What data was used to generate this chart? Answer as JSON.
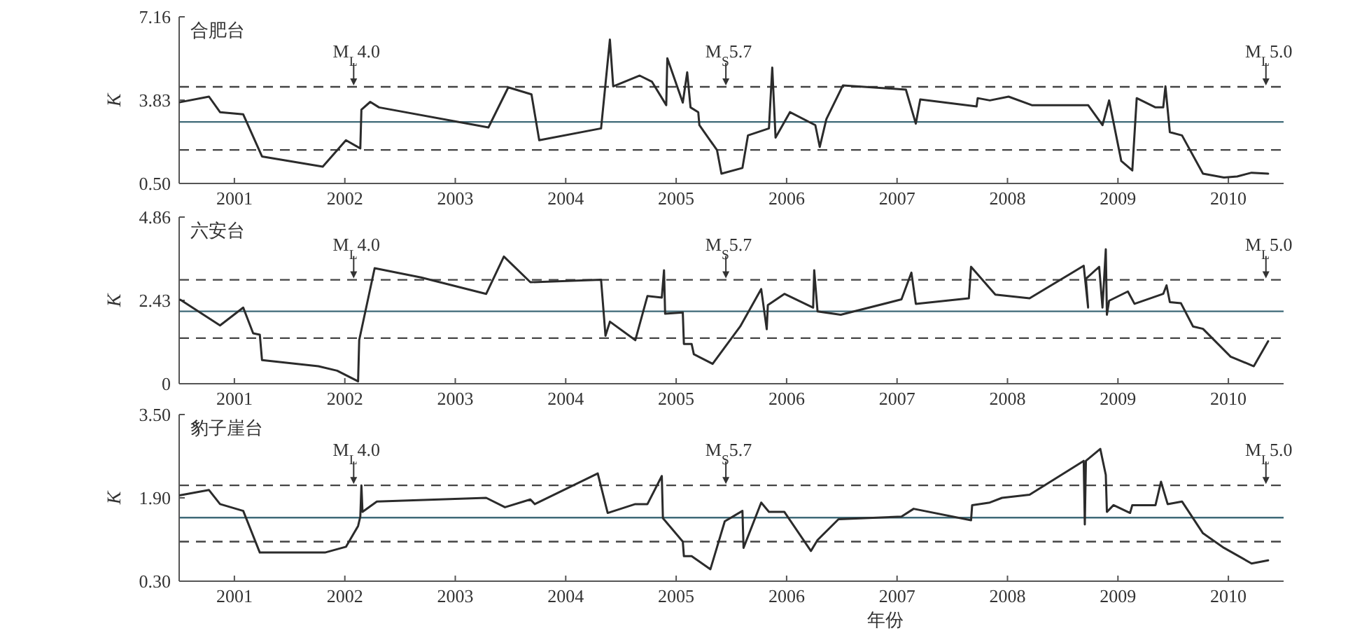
{
  "chart_data": [
    {
      "type": "line",
      "title": "合肥台",
      "ylabel": "K",
      "xlim": [
        2001,
        2011
      ],
      "ylim": [
        0.5,
        7.16
      ],
      "xticks": [
        {
          "value": 2001.5,
          "label": "2001"
        },
        {
          "value": 2002.5,
          "label": "2002"
        },
        {
          "value": 2003.5,
          "label": "2003"
        },
        {
          "value": 2004.5,
          "label": "2004"
        },
        {
          "value": 2005.5,
          "label": "2005"
        },
        {
          "value": 2006.5,
          "label": "2006"
        },
        {
          "value": 2007.5,
          "label": "2007"
        },
        {
          "value": 2008.5,
          "label": "2008"
        },
        {
          "value": 2009.5,
          "label": "2009"
        },
        {
          "value": 2010.5,
          "label": "2010"
        }
      ],
      "yticks": [
        {
          "value": 0.5,
          "label": "0.50"
        },
        3.83,
        7.16
      ],
      "x": [
        2001.01,
        2001.27,
        2001.37,
        2001.58,
        2001.75,
        2002.3,
        2002.51,
        2002.64,
        2002.65,
        2002.73,
        2002.81,
        2003.8,
        2003.98,
        2004.19,
        2004.26,
        2004.82,
        2004.9,
        2004.93,
        2005.17,
        2005.28,
        2005.41,
        2005.42,
        2005.56,
        2005.6,
        2005.63,
        2005.7,
        2005.71,
        2005.87,
        2005.91,
        2006.1,
        2006.15,
        2006.34,
        2006.37,
        2006.4,
        2006.53,
        2006.76,
        2006.8,
        2006.86,
        2007.01,
        2007.58,
        2007.67,
        2007.71,
        2008.22,
        2008.23,
        2008.34,
        2008.51,
        2008.72,
        2009.23,
        2009.36,
        2009.42,
        2009.53,
        2009.63,
        2009.67,
        2009.84,
        2009.91,
        2009.93,
        2009.97,
        2010.08,
        2010.27,
        2010.46,
        2010.58,
        2010.71,
        2010.86
      ],
      "series": [
        {
          "color": "#2b2b2b",
          "values": [
            3.75,
            3.97,
            3.35,
            3.26,
            1.58,
            1.17,
            2.23,
            1.9,
            3.45,
            3.76,
            3.54,
            2.74,
            4.34,
            4.06,
            2.23,
            2.7,
            6.25,
            4.38,
            4.81,
            4.57,
            3.63,
            5.5,
            3.73,
            4.94,
            3.54,
            3.35,
            2.83,
            1.83,
            0.89,
            1.12,
            2.42,
            2.7,
            5.13,
            2.33,
            3.35,
            2.83,
            1.96,
            3.07,
            4.42,
            4.25,
            2.89,
            3.86,
            3.58,
            3.91,
            3.82,
            3.97,
            3.63,
            3.63,
            2.83,
            3.82,
            1.4,
            1.02,
            3.91,
            3.54,
            3.54,
            4.38,
            2.55,
            2.42,
            0.89,
            0.74,
            0.78,
            0.93,
            0.89
          ]
        }
      ],
      "ref_lines": [
        {
          "axis": "y",
          "value": 4.36,
          "color": "#444444",
          "line_style": "dashed"
        },
        {
          "axis": "y",
          "value": 2.96,
          "color": "#3f6a78",
          "line_style": "solid"
        },
        {
          "axis": "y",
          "value": 1.84,
          "color": "#444444",
          "line_style": "dashed"
        }
      ],
      "annotations": [
        {
          "text": "M$_{L}$4.0",
          "x": 2002.58,
          "y": 4.36
        },
        {
          "text": "M$_{S}$5.7",
          "x": 2005.95,
          "y": 4.36
        },
        {
          "text": "M$_{L}$5.0",
          "x": 2010.84,
          "y": 4.36
        }
      ]
    },
    {
      "type": "line",
      "title": "六安台",
      "ylabel": "K",
      "xlim": [
        2001,
        2011
      ],
      "ylim": [
        0,
        4.86
      ],
      "xticks": [
        {
          "value": 2001.5,
          "label": "2001"
        },
        {
          "value": 2002.5,
          "label": "2002"
        },
        {
          "value": 2003.5,
          "label": "2003"
        },
        {
          "value": 2004.5,
          "label": "2004"
        },
        {
          "value": 2005.5,
          "label": "2005"
        },
        {
          "value": 2006.5,
          "label": "2006"
        },
        {
          "value": 2007.5,
          "label": "2007"
        },
        {
          "value": 2008.5,
          "label": "2008"
        },
        {
          "value": 2009.5,
          "label": "2009"
        },
        {
          "value": 2010.5,
          "label": "2010"
        }
      ],
      "yticks": [
        0,
        2.43,
        4.86
      ],
      "x": [
        2001.01,
        2001.37,
        2001.58,
        2001.67,
        2001.73,
        2001.75,
        2002.26,
        2002.43,
        2002.62,
        2002.63,
        2002.77,
        2003.19,
        2003.78,
        2003.94,
        2004.18,
        2004.82,
        2004.86,
        2004.9,
        2005.13,
        2005.24,
        2005.37,
        2005.39,
        2005.4,
        2005.56,
        2005.57,
        2005.64,
        2005.66,
        2005.83,
        2006.08,
        2006.27,
        2006.32,
        2006.33,
        2006.48,
        2006.74,
        2006.75,
        2006.78,
        2006.99,
        2007.54,
        2007.63,
        2007.67,
        2008.15,
        2008.17,
        2008.39,
        2008.7,
        2009.19,
        2009.23,
        2009.21,
        2009.33,
        2009.36,
        2009.39,
        2009.4,
        2009.42,
        2009.59,
        2009.65,
        2009.91,
        2009.94,
        2009.97,
        2010.07,
        2010.18,
        2010.27,
        2010.52,
        2010.73,
        2010.86
      ],
      "series": [
        {
          "color": "#2b2b2b",
          "values": [
            2.45,
            1.7,
            2.22,
            1.47,
            1.43,
            0.69,
            0.51,
            0.38,
            0.07,
            1.27,
            3.37,
            3.1,
            2.62,
            3.71,
            2.96,
            3.03,
            1.4,
            1.81,
            1.27,
            2.56,
            2.51,
            3.31,
            2.04,
            2.08,
            1.16,
            1.16,
            0.86,
            0.58,
            1.67,
            2.76,
            1.59,
            2.29,
            2.62,
            2.22,
            3.31,
            2.11,
            2.01,
            2.46,
            3.24,
            2.33,
            2.49,
            3.41,
            2.6,
            2.49,
            3.44,
            2.22,
            3.06,
            3.41,
            2.22,
            3.92,
            2.01,
            2.42,
            2.69,
            2.33,
            2.62,
            2.87,
            2.38,
            2.35,
            1.67,
            1.6,
            0.79,
            0.51,
            1.24
          ]
        }
      ],
      "ref_lines": [
        {
          "axis": "y",
          "value": 3.03,
          "color": "#444444",
          "line_style": "dashed"
        },
        {
          "axis": "y",
          "value": 2.11,
          "color": "#3f6a78",
          "line_style": "solid"
        },
        {
          "axis": "y",
          "value": 1.33,
          "color": "#444444",
          "line_style": "dashed"
        }
      ],
      "annotations": [
        {
          "text": "M$_{L}$4.0",
          "x": 2002.58,
          "y": 3.03
        },
        {
          "text": "M$_{S}$5.7",
          "x": 2005.95,
          "y": 3.03
        },
        {
          "text": "M$_{L}$5.0",
          "x": 2010.84,
          "y": 3.03
        }
      ]
    },
    {
      "type": "line",
      "title": "豹子崖台",
      "ylabel": "K",
      "xlabel": "年份",
      "xlim": [
        2001,
        2011
      ],
      "ylim": [
        0.3,
        3.5
      ],
      "xticks": [
        {
          "value": 2001.5,
          "label": "2001"
        },
        {
          "value": 2002.5,
          "label": "2002"
        },
        {
          "value": 2003.5,
          "label": "2003"
        },
        {
          "value": 2004.5,
          "label": "2004"
        },
        {
          "value": 2005.5,
          "label": "2005"
        },
        {
          "value": 2006.5,
          "label": "2006"
        },
        {
          "value": 2007.5,
          "label": "2007"
        },
        {
          "value": 2008.5,
          "label": "2008"
        },
        {
          "value": 2009.5,
          "label": "2009"
        },
        {
          "value": 2010.5,
          "label": "2010"
        }
      ],
      "yticks": [
        {
          "value": 0.3,
          "label": "0.30"
        },
        {
          "value": 1.9,
          "label": "1.90"
        },
        {
          "value": 3.5,
          "label": "3.50"
        }
      ],
      "x": [
        2001.01,
        2001.27,
        2001.37,
        2001.58,
        2001.73,
        2002.32,
        2002.51,
        2002.62,
        2002.64,
        2002.65,
        2002.66,
        2002.79,
        2003.78,
        2003.95,
        2004.18,
        2004.22,
        2004.79,
        2004.88,
        2005.13,
        2005.24,
        2005.37,
        2005.38,
        2005.56,
        2005.57,
        2005.64,
        2005.81,
        2005.94,
        2006.1,
        2006.11,
        2006.27,
        2006.34,
        2006.48,
        2006.72,
        2006.78,
        2006.97,
        2007.54,
        2007.65,
        2008.17,
        2008.18,
        2008.34,
        2008.45,
        2008.7,
        2009.19,
        2009.2,
        2009.21,
        2009.34,
        2009.39,
        2009.4,
        2009.46,
        2009.61,
        2009.63,
        2009.84,
        2009.89,
        2009.95,
        2010.08,
        2010.27,
        2010.46,
        2010.71,
        2010.86
      ],
      "series": [
        {
          "color": "#2b2b2b",
          "values": [
            1.95,
            2.05,
            1.78,
            1.65,
            0.85,
            0.85,
            0.96,
            1.36,
            1.54,
            2.14,
            1.63,
            1.83,
            1.9,
            1.72,
            1.87,
            1.78,
            2.37,
            1.61,
            1.78,
            1.78,
            2.32,
            1.51,
            1.06,
            0.78,
            0.78,
            0.53,
            1.45,
            1.65,
            0.94,
            1.81,
            1.63,
            1.63,
            0.88,
            1.09,
            1.49,
            1.54,
            1.69,
            1.47,
            1.76,
            1.81,
            1.9,
            1.96,
            2.61,
            1.39,
            2.61,
            2.84,
            2.34,
            1.63,
            1.76,
            1.61,
            1.76,
            1.76,
            2.21,
            1.78,
            1.83,
            1.22,
            0.94,
            0.64,
            0.7
          ]
        }
      ],
      "ref_lines": [
        {
          "axis": "y",
          "value": 2.14,
          "color": "#444444",
          "line_style": "dashed"
        },
        {
          "axis": "y",
          "value": 1.52,
          "color": "#3f6a78",
          "line_style": "solid"
        },
        {
          "axis": "y",
          "value": 1.06,
          "color": "#444444",
          "line_style": "dashed"
        }
      ],
      "annotations": [
        {
          "text": "M$_{L}$4.0",
          "x": 2002.58,
          "y": 2.14
        },
        {
          "text": "M$_{S}$5.7",
          "x": 2005.95,
          "y": 2.14
        },
        {
          "text": "M$_{L}$5.0",
          "x": 2010.84,
          "y": 2.14
        }
      ]
    }
  ]
}
